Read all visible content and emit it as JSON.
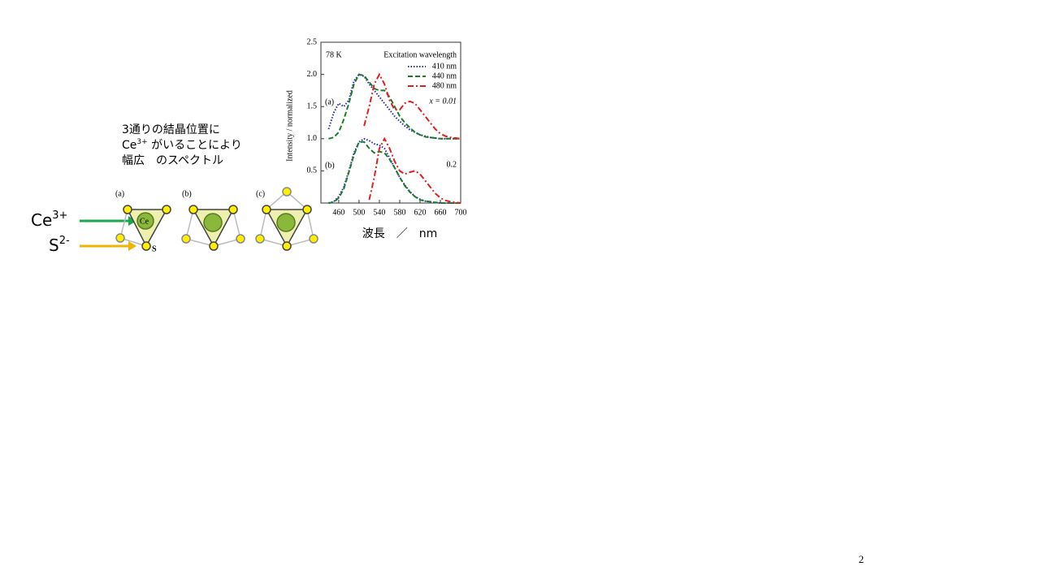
{
  "slide": {
    "note_lines": [
      {
        "text": "3通りの結晶位置に"
      },
      {
        "base": "Ce",
        "sup": "3+",
        "rest": " がいることにより"
      },
      {
        "text": "幅広　のスペクトル"
      }
    ],
    "ion_labels": [
      {
        "base": "Ce",
        "sup": "3+"
      },
      {
        "base": "S",
        "sup": "2-"
      }
    ],
    "structure_labels": [
      "(a)",
      "(b)",
      "(c)"
    ],
    "atom_labels": [
      "Ce",
      "S"
    ],
    "page_number": "2"
  },
  "chart_data": {
    "type": "line",
    "ylabel": "Intensity / normalized",
    "xlabel": "波長　／　nm",
    "annotations": [
      "78 K",
      "(a)",
      "x = 0.01",
      "(b)",
      "0.2"
    ],
    "legend_title": "Excitation wavelength",
    "x": [
      440,
      450,
      460,
      470,
      480,
      490,
      500,
      510,
      520,
      530,
      540,
      550,
      560,
      570,
      580,
      590,
      600,
      610,
      620,
      630,
      640,
      650,
      660,
      670,
      680,
      690,
      700
    ],
    "xlim": [
      425,
      700
    ],
    "xticks": [
      460,
      500,
      540,
      580,
      620,
      660,
      700
    ],
    "ylim": [
      0,
      2.5
    ],
    "yticks": [
      0.5,
      {
        "value": 1,
        "label": "1.0"
      },
      1.5,
      {
        "value": 2,
        "label": "2.0"
      },
      2.5
    ],
    "series": [
      {
        "name": "410 nm",
        "color": "#2b2bb0",
        "style": "dotted",
        "values": [
          1.15,
          1.4,
          1.55,
          1.5,
          1.6,
          1.9,
          2.0,
          1.97,
          1.85,
          1.75,
          1.65,
          1.55,
          1.45,
          1.35,
          1.27,
          1.2,
          1.14,
          1.1,
          1.06,
          1.04,
          1.02,
          1.01,
          1.0,
          1.0,
          1.0,
          1.0,
          1.0
        ]
      },
      {
        "name": "440 nm",
        "color": "#1e7a2a",
        "style": "dashed",
        "values": [
          1.0,
          1.02,
          1.1,
          1.3,
          1.55,
          1.85,
          2.0,
          1.98,
          1.88,
          1.78,
          1.75,
          1.75,
          1.65,
          1.5,
          1.35,
          1.25,
          1.17,
          1.1,
          1.06,
          1.03,
          1.02,
          1.01,
          1.0,
          1.0,
          1.0,
          1.0,
          1.0
        ]
      },
      {
        "name": "480 nm",
        "color": "#e01e1e",
        "style": "dashdot",
        "values": [
          null,
          null,
          null,
          null,
          null,
          null,
          null,
          1.2,
          1.5,
          1.85,
          2.0,
          1.85,
          1.6,
          1.45,
          1.45,
          1.55,
          1.58,
          1.55,
          1.45,
          1.35,
          1.25,
          1.15,
          1.08,
          1.04,
          1.02,
          1.01,
          1.0
        ]
      },
      {
        "color": "#2b2bb0",
        "style": "dotted",
        "values": [
          0,
          0.02,
          0.1,
          0.25,
          0.5,
          0.78,
          0.95,
          1.0,
          0.97,
          0.92,
          0.9,
          0.85,
          0.7,
          0.55,
          0.4,
          0.28,
          0.18,
          0.1,
          0.06,
          0.03,
          0.02,
          0.01,
          0,
          0,
          0,
          0,
          0
        ]
      },
      {
        "color": "#1e7a2a",
        "style": "dashed",
        "values": [
          0,
          0.01,
          0.08,
          0.22,
          0.48,
          0.75,
          0.95,
          0.95,
          0.85,
          0.78,
          0.8,
          0.78,
          0.68,
          0.55,
          0.4,
          0.27,
          0.17,
          0.1,
          0.05,
          0.03,
          0.02,
          0.01,
          0,
          0,
          0,
          0,
          0
        ]
      },
      {
        "color": "#e01e1e",
        "style": "dashdot",
        "values": [
          null,
          null,
          null,
          null,
          null,
          null,
          null,
          null,
          0.05,
          0.4,
          0.85,
          1.0,
          0.85,
          0.65,
          0.5,
          0.45,
          0.48,
          0.5,
          0.45,
          0.35,
          0.25,
          0.15,
          0.08,
          0.04,
          0.02,
          0.01,
          0
        ]
      }
    ]
  }
}
